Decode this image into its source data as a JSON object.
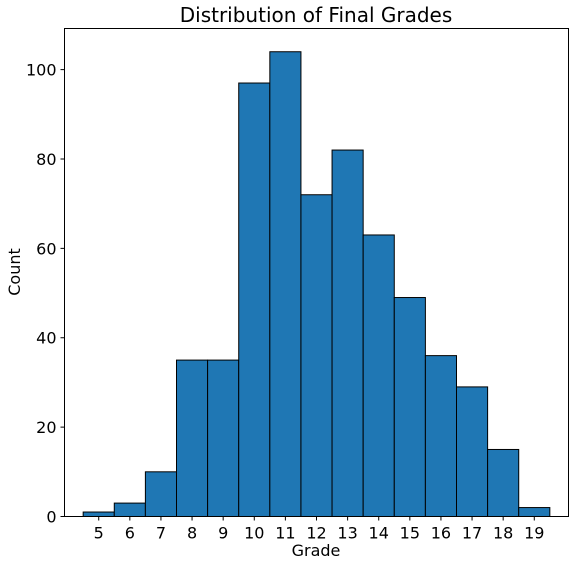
{
  "chart_data": {
    "type": "bar",
    "title": "Distribution of Final Grades",
    "xlabel": "Grade",
    "ylabel": "Count",
    "categories": [
      "5",
      "6",
      "7",
      "8",
      "9",
      "10",
      "11",
      "12",
      "13",
      "14",
      "15",
      "16",
      "17",
      "18",
      "19"
    ],
    "values": [
      1,
      3,
      10,
      35,
      35,
      97,
      104,
      72,
      82,
      63,
      49,
      36,
      29,
      15,
      2
    ],
    "bin_edges": [
      4.5,
      5.5,
      6.5,
      7.5,
      8.5,
      9.5,
      10.5,
      11.5,
      12.5,
      13.5,
      14.5,
      15.5,
      16.5,
      17.5,
      18.5,
      19.5
    ],
    "xlim": [
      3.9,
      20.1
    ],
    "ylim": [
      0,
      109.2
    ],
    "yticks": [
      0,
      20,
      40,
      60,
      80,
      100
    ],
    "xticks": [
      5,
      6,
      7,
      8,
      9,
      10,
      11,
      12,
      13,
      14,
      15,
      16,
      17,
      18,
      19
    ],
    "bar_color": "#1f77b4",
    "edge_color": "#000000",
    "grid": false,
    "legend": "none"
  }
}
